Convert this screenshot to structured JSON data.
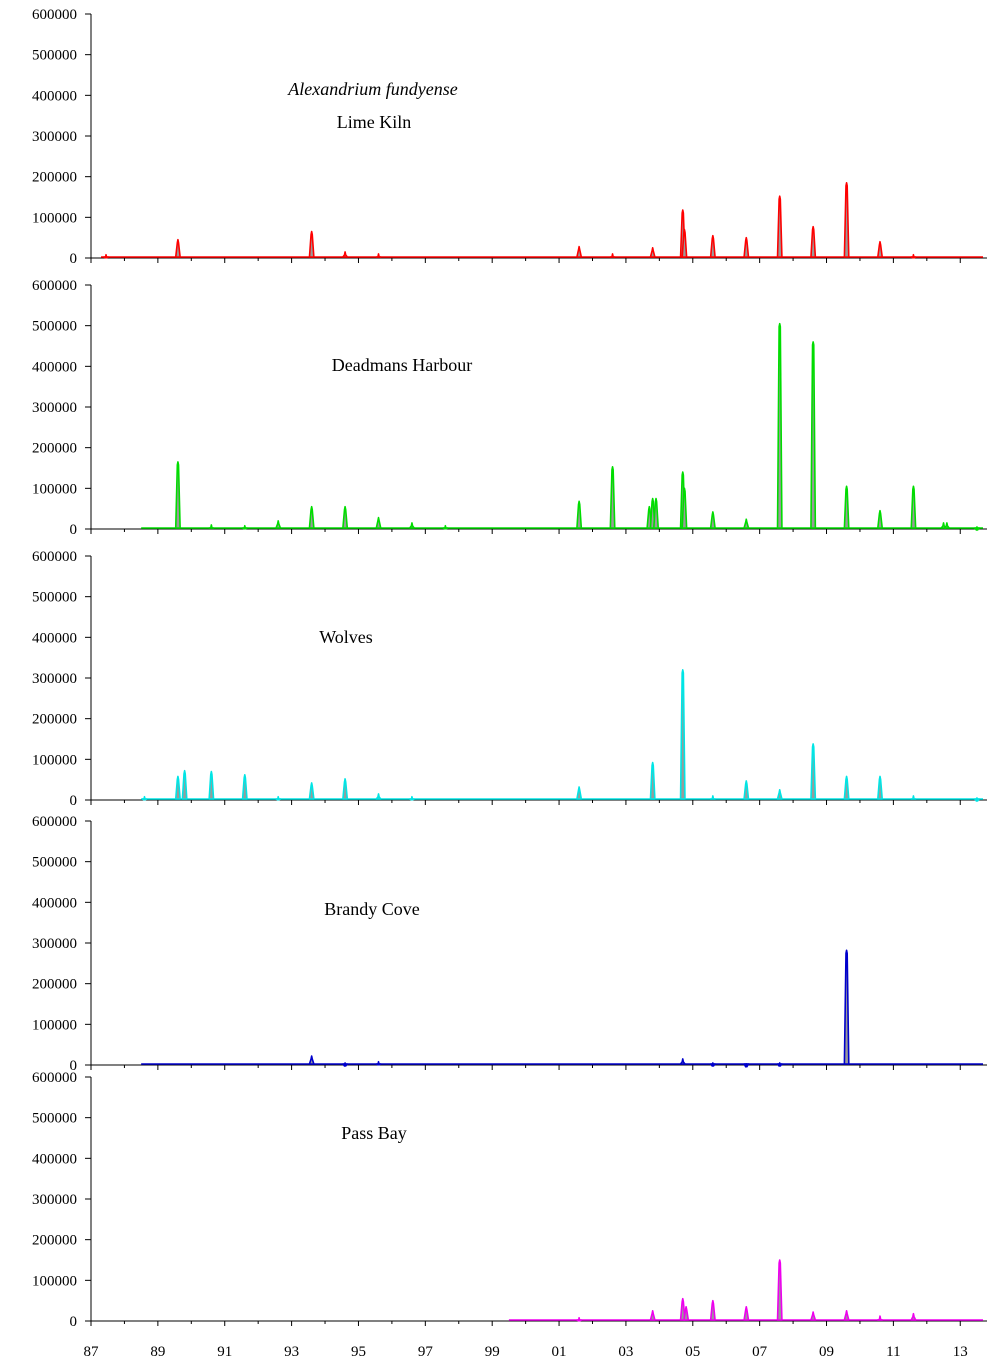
{
  "chart_data": {
    "type": "line",
    "species_label": "Alexandrium fundyense",
    "x_tick_labels": [
      "87",
      "89",
      "91",
      "93",
      "95",
      "97",
      "99",
      "01",
      "03",
      "05",
      "07",
      "09",
      "11",
      "13"
    ],
    "x_tick_years": [
      1987,
      1989,
      1991,
      1993,
      1995,
      1997,
      1999,
      2001,
      2003,
      2005,
      2007,
      2009,
      2011,
      2013
    ],
    "xlim": [
      1987,
      2013.8
    ],
    "ylim": [
      0,
      600000
    ],
    "y_tick_labels": [
      "600000",
      "500000",
      "400000",
      "300000",
      "200000",
      "100000",
      "0"
    ],
    "y_ticks": [
      600000,
      500000,
      400000,
      300000,
      200000,
      100000,
      0
    ],
    "panels": [
      {
        "name": "Lime Kiln",
        "color": "#ff0000",
        "x_start": 1987.3,
        "peaks": [
          [
            1987.45,
            8000
          ],
          [
            1989.6,
            45000
          ],
          [
            1993.6,
            65000
          ],
          [
            1994.6,
            15000
          ],
          [
            1995.6,
            10000
          ],
          [
            2001.6,
            28000
          ],
          [
            2002.6,
            10000
          ],
          [
            2003.8,
            25000
          ],
          [
            2004.7,
            118000
          ],
          [
            2004.75,
            70000
          ],
          [
            2005.6,
            55000
          ],
          [
            2006.6,
            50000
          ],
          [
            2007.6,
            152000
          ],
          [
            2008.6,
            77000
          ],
          [
            2009.6,
            185000
          ],
          [
            2010.6,
            40000
          ],
          [
            2011.6,
            8000
          ]
        ]
      },
      {
        "name": "Deadmans Harbour",
        "color": "#00dd00",
        "x_start": 1988.5,
        "peaks": [
          [
            1989.6,
            165000
          ],
          [
            1990.6,
            10000
          ],
          [
            1991.6,
            8000
          ],
          [
            1992.6,
            20000
          ],
          [
            1993.6,
            55000
          ],
          [
            1994.6,
            55000
          ],
          [
            1995.6,
            28000
          ],
          [
            1996.6,
            15000
          ],
          [
            1997.6,
            8000
          ],
          [
            2001.6,
            68000
          ],
          [
            2002.6,
            153000
          ],
          [
            2003.7,
            55000
          ],
          [
            2003.8,
            75000
          ],
          [
            2003.9,
            75000
          ],
          [
            2004.7,
            140000
          ],
          [
            2004.75,
            100000
          ],
          [
            2005.6,
            42000
          ],
          [
            2006.6,
            24000
          ],
          [
            2007.6,
            505000
          ],
          [
            2008.6,
            460000
          ],
          [
            2009.6,
            105000
          ],
          [
            2010.6,
            45000
          ],
          [
            2011.6,
            105000
          ],
          [
            2012.5,
            15000
          ],
          [
            2012.6,
            15000
          ],
          [
            2013.5,
            5000
          ]
        ]
      },
      {
        "name": "Wolves",
        "color": "#00e5e5",
        "x_start": 1988.5,
        "peaks": [
          [
            1988.6,
            8000
          ],
          [
            1989.6,
            58000
          ],
          [
            1989.8,
            72000
          ],
          [
            1990.6,
            70000
          ],
          [
            1991.6,
            62000
          ],
          [
            1992.6,
            8000
          ],
          [
            1993.6,
            42000
          ],
          [
            1994.6,
            52000
          ],
          [
            1995.6,
            15000
          ],
          [
            1996.6,
            8000
          ],
          [
            2001.6,
            32000
          ],
          [
            2003.8,
            92000
          ],
          [
            2004.7,
            320000
          ],
          [
            2005.6,
            10000
          ],
          [
            2006.6,
            47000
          ],
          [
            2007.6,
            25000
          ],
          [
            2008.6,
            138000
          ],
          [
            2009.6,
            58000
          ],
          [
            2010.6,
            58000
          ],
          [
            2011.6,
            10000
          ],
          [
            2013.5,
            5000
          ]
        ]
      },
      {
        "name": "Brandy Cove",
        "color": "#0000cc",
        "x_start": 1988.5,
        "peaks": [
          [
            1993.6,
            22000
          ],
          [
            1994.6,
            5000
          ],
          [
            1995.6,
            8000
          ],
          [
            2004.7,
            15000
          ],
          [
            2005.6,
            5000
          ],
          [
            2006.6,
            3000
          ],
          [
            2007.6,
            5000
          ],
          [
            2009.6,
            282000
          ]
        ]
      },
      {
        "name": "Pass Bay",
        "color": "#ee00ee",
        "x_start": 1999.5,
        "peaks": [
          [
            2001.6,
            8000
          ],
          [
            2003.8,
            25000
          ],
          [
            2004.7,
            55000
          ],
          [
            2004.8,
            35000
          ],
          [
            2005.6,
            50000
          ],
          [
            2006.6,
            35000
          ],
          [
            2007.6,
            150000
          ],
          [
            2008.6,
            22000
          ],
          [
            2009.6,
            25000
          ],
          [
            2010.6,
            12000
          ],
          [
            2011.6,
            18000
          ]
        ]
      }
    ]
  }
}
